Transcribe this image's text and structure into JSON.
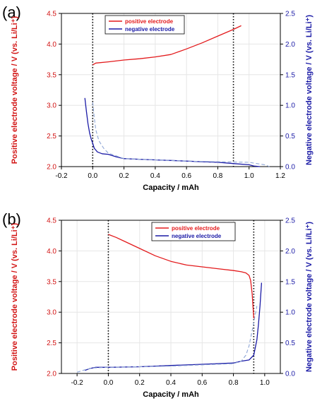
{
  "chart_data": [
    {
      "type": "line",
      "panel_label": "(a)",
      "xlabel": "Capacity / mAh",
      "ylabel": "Positive electrode voltage / V (vs. Li/Li⁺)",
      "y2label": "Negative electrode voltage / V (vs. Li/Li⁺)",
      "xlim": [
        -0.2,
        1.2
      ],
      "ylim": [
        2.0,
        4.5
      ],
      "y2lim": [
        0.0,
        2.5
      ],
      "xticks": [
        "-0.2",
        "0.0",
        "0.2",
        "0.4",
        "0.6",
        "0.8",
        "1.0",
        "1.2"
      ],
      "xtick_values": [
        -0.2,
        0.0,
        0.2,
        0.4,
        0.6,
        0.8,
        1.0,
        1.2
      ],
      "yticks": [
        "2.0",
        "2.5",
        "3.0",
        "3.5",
        "4.0",
        "4.5"
      ],
      "ytick_values": [
        2.0,
        2.5,
        3.0,
        3.5,
        4.0,
        4.5
      ],
      "y2ticks": [
        "0.0",
        "0.5",
        "1.0",
        "1.5",
        "2.0",
        "2.5"
      ],
      "y2tick_values": [
        0.0,
        0.5,
        1.0,
        1.5,
        2.0,
        2.5
      ],
      "vlines": [
        0.0,
        0.9
      ],
      "grid": true,
      "legend_position": "top-center",
      "legend": [
        {
          "name": "positive electrode",
          "color": "#e31a1c"
        },
        {
          "name": "negative electrode",
          "color": "#1a1aa6"
        }
      ],
      "series": [
        {
          "name": "positive electrode",
          "axis": "left",
          "color": "#e31a1c",
          "style": "solid",
          "x": [
            0.0,
            0.02,
            0.1,
            0.2,
            0.3,
            0.4,
            0.5,
            0.6,
            0.7,
            0.8,
            0.9,
            0.95
          ],
          "y": [
            3.66,
            3.69,
            3.71,
            3.74,
            3.76,
            3.79,
            3.83,
            3.92,
            4.02,
            4.13,
            4.24,
            4.3
          ]
        },
        {
          "name": "negative electrode",
          "axis": "right",
          "color": "#1a1aa6",
          "style": "solid",
          "x": [
            -0.05,
            -0.04,
            -0.03,
            -0.02,
            -0.01,
            0.0,
            0.01,
            0.03,
            0.06,
            0.1,
            0.15,
            0.2,
            0.3,
            0.4,
            0.5,
            0.6,
            0.7,
            0.8,
            0.9,
            1.0,
            1.03,
            1.07
          ],
          "y": [
            1.12,
            0.9,
            0.7,
            0.55,
            0.45,
            0.38,
            0.3,
            0.24,
            0.21,
            0.2,
            0.16,
            0.13,
            0.12,
            0.11,
            0.1,
            0.09,
            0.08,
            0.07,
            0.05,
            0.03,
            0.01,
            0.0
          ]
        },
        {
          "name": "",
          "axis": "right",
          "color": "#8ea6d6",
          "style": "dashed",
          "x": [
            0.0,
            0.01,
            0.02,
            0.04,
            0.07,
            0.1,
            0.2,
            0.4,
            0.6,
            0.8,
            1.0,
            1.05,
            1.1,
            1.13
          ],
          "y": [
            1.05,
            0.8,
            0.6,
            0.42,
            0.3,
            0.22,
            0.13,
            0.11,
            0.09,
            0.08,
            0.07,
            0.05,
            0.03,
            0.0
          ]
        }
      ]
    },
    {
      "type": "line",
      "panel_label": "(b)",
      "xlabel": "Capacity / mAh",
      "ylabel": "Positive electrode voltage / V (vs. Li/Li⁺)",
      "y2label": "Negative electrode voltage / V (vs. Li/Li⁺)",
      "xlim": [
        -0.3,
        1.1
      ],
      "ylim": [
        2.0,
        4.5
      ],
      "y2lim": [
        0.0,
        2.5
      ],
      "xticks": [
        "-0.2",
        "0.0",
        "0.2",
        "0.4",
        "0.6",
        "0.8",
        "1.0"
      ],
      "xtick_values": [
        -0.2,
        0.0,
        0.2,
        0.4,
        0.6,
        0.8,
        1.0
      ],
      "yticks": [
        "2.0",
        "2.5",
        "3.0",
        "3.5",
        "4.0",
        "4.5"
      ],
      "ytick_values": [
        2.0,
        2.5,
        3.0,
        3.5,
        4.0,
        4.5
      ],
      "y2ticks": [
        "0.0",
        "0.5",
        "1.0",
        "1.5",
        "2.0",
        "2.5"
      ],
      "y2tick_values": [
        0.0,
        0.5,
        1.0,
        1.5,
        2.0,
        2.5
      ],
      "vlines": [
        0.0,
        0.93
      ],
      "grid": true,
      "legend_position": "top-right",
      "legend": [
        {
          "name": "positive electrode",
          "color": "#e31a1c"
        },
        {
          "name": "negative electrode",
          "color": "#1a1aa6"
        }
      ],
      "series": [
        {
          "name": "positive electrode",
          "axis": "left",
          "color": "#e31a1c",
          "style": "solid",
          "x": [
            0.0,
            0.05,
            0.1,
            0.2,
            0.3,
            0.4,
            0.5,
            0.6,
            0.7,
            0.8,
            0.85,
            0.88,
            0.9,
            0.91,
            0.92,
            0.93
          ],
          "y": [
            4.27,
            4.22,
            4.16,
            4.04,
            3.92,
            3.83,
            3.77,
            3.74,
            3.71,
            3.68,
            3.66,
            3.64,
            3.6,
            3.52,
            3.3,
            2.9
          ]
        },
        {
          "name": "negative electrode",
          "axis": "right",
          "color": "#1a1aa6",
          "style": "solid",
          "x": [
            -0.15,
            -0.12,
            -0.08,
            0.0,
            0.2,
            0.4,
            0.6,
            0.8,
            0.85,
            0.9,
            0.93,
            0.95,
            0.96,
            0.97,
            0.98
          ],
          "y": [
            0.05,
            0.08,
            0.1,
            0.1,
            0.11,
            0.13,
            0.15,
            0.17,
            0.2,
            0.22,
            0.3,
            0.55,
            0.8,
            1.1,
            1.48
          ]
        },
        {
          "name": "",
          "axis": "right",
          "color": "#8ea6d6",
          "style": "dashed",
          "x": [
            -0.2,
            -0.15,
            -0.1,
            0.0,
            0.2,
            0.4,
            0.6,
            0.8,
            0.85,
            0.88,
            0.9,
            0.92,
            0.95
          ],
          "y": [
            0.02,
            0.06,
            0.09,
            0.1,
            0.11,
            0.12,
            0.14,
            0.16,
            0.2,
            0.3,
            0.45,
            0.7,
            1.1
          ]
        }
      ]
    }
  ]
}
